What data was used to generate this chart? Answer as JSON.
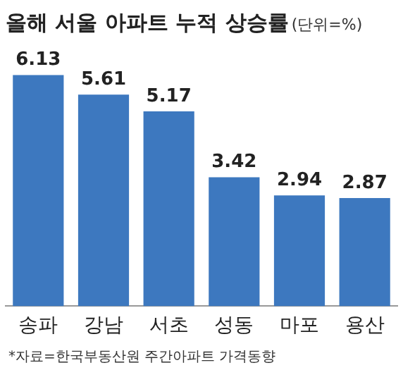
{
  "chart_data": {
    "type": "bar",
    "title": "올해 서울 아파트 누적 상승률",
    "subtitle": "(단위=%)",
    "categories": [
      "송파",
      "강남",
      "서초",
      "성동",
      "마포",
      "용산"
    ],
    "values": [
      6.13,
      5.61,
      5.17,
      3.42,
      2.94,
      2.87
    ],
    "color": "#3d78bf",
    "data_labels": true,
    "grid": false,
    "legend": false,
    "annotations": [
      "*자료=한국부동산원 주간아파트 가격동향"
    ]
  }
}
